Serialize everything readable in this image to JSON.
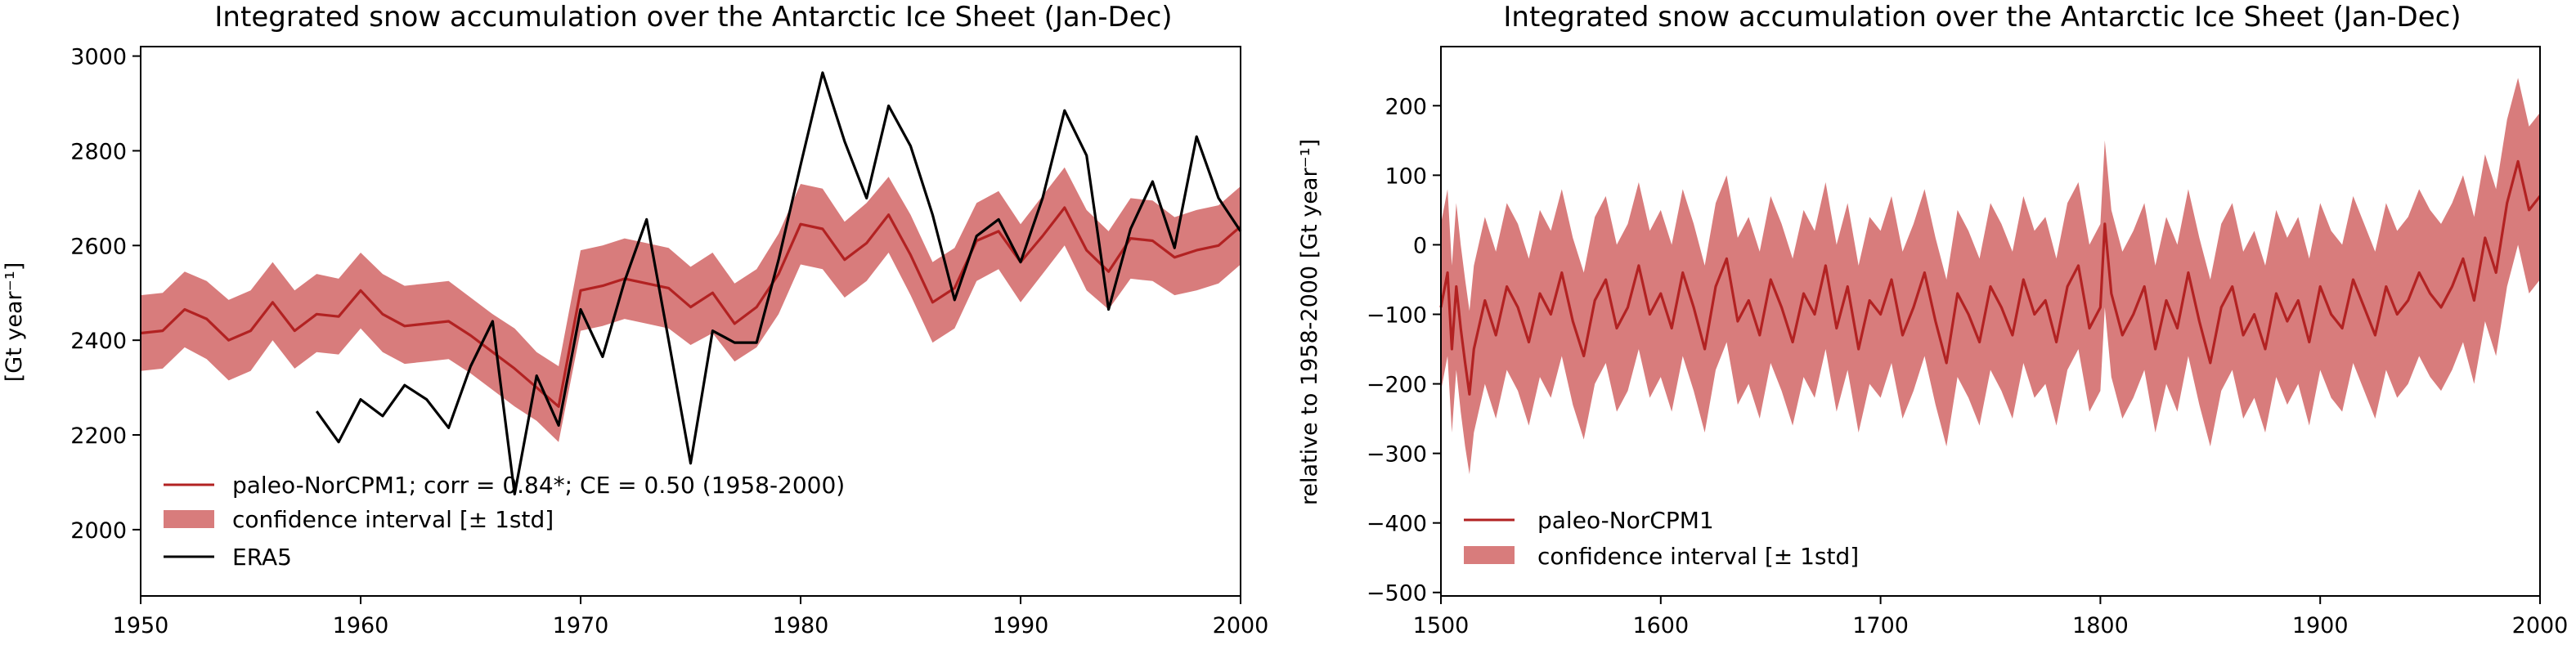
{
  "chart_data": [
    {
      "type": "line",
      "title": "Integrated snow accumulation over the Antarctic Ice Sheet (Jan-Dec)",
      "ylabel": "[Gt year⁻¹]",
      "xlabel": "",
      "xlim": [
        1950,
        2000
      ],
      "ylim": [
        1860,
        3020
      ],
      "x_ticks": [
        1950,
        1960,
        1970,
        1980,
        1990,
        2000
      ],
      "y_ticks": [
        2000,
        2200,
        2400,
        2600,
        2800,
        3000
      ],
      "legend_position": "lower-left",
      "legend": [
        {
          "kind": "line",
          "label": "paleo-NorCPM1; corr = 0.84*; CE = 0.50 (1958-2000)",
          "color": "#b22222"
        },
        {
          "kind": "patch",
          "label": "confidence interval [± 1std]",
          "color": "#d87c7c"
        },
        {
          "kind": "line",
          "label": "ERA5",
          "color": "#000000"
        }
      ],
      "series": [
        {
          "name": "paleo-NorCPM1",
          "color": "#b22222",
          "x": [
            1950,
            1951,
            1952,
            1953,
            1954,
            1955,
            1956,
            1957,
            1958,
            1959,
            1960,
            1961,
            1962,
            1963,
            1964,
            1965,
            1966,
            1967,
            1968,
            1969,
            1970,
            1971,
            1972,
            1973,
            1974,
            1975,
            1976,
            1977,
            1978,
            1979,
            1980,
            1981,
            1982,
            1983,
            1984,
            1985,
            1986,
            1987,
            1988,
            1989,
            1990,
            1991,
            1992,
            1993,
            1994,
            1995,
            1996,
            1997,
            1998,
            1999,
            2000
          ],
          "y": [
            2415,
            2420,
            2465,
            2445,
            2400,
            2420,
            2480,
            2420,
            2455,
            2450,
            2505,
            2455,
            2430,
            2435,
            2440,
            2410,
            2375,
            2340,
            2300,
            2260,
            2505,
            2515,
            2530,
            2520,
            2510,
            2470,
            2500,
            2435,
            2470,
            2540,
            2645,
            2635,
            2570,
            2605,
            2665,
            2580,
            2480,
            2510,
            2610,
            2630,
            2565,
            2620,
            2680,
            2590,
            2545,
            2615,
            2610,
            2575,
            2590,
            2600,
            2640
          ],
          "lower": [
            2335,
            2340,
            2385,
            2360,
            2315,
            2335,
            2400,
            2340,
            2375,
            2370,
            2425,
            2375,
            2350,
            2355,
            2360,
            2330,
            2295,
            2260,
            2230,
            2185,
            2420,
            2430,
            2445,
            2435,
            2425,
            2390,
            2415,
            2355,
            2385,
            2455,
            2560,
            2550,
            2490,
            2525,
            2585,
            2495,
            2395,
            2425,
            2525,
            2550,
            2480,
            2540,
            2600,
            2505,
            2465,
            2530,
            2525,
            2495,
            2505,
            2520,
            2560
          ],
          "upper": [
            2495,
            2500,
            2545,
            2525,
            2485,
            2505,
            2565,
            2505,
            2540,
            2530,
            2585,
            2540,
            2515,
            2520,
            2525,
            2490,
            2455,
            2425,
            2375,
            2345,
            2590,
            2600,
            2615,
            2605,
            2595,
            2555,
            2585,
            2520,
            2550,
            2625,
            2730,
            2720,
            2650,
            2690,
            2745,
            2665,
            2565,
            2595,
            2690,
            2715,
            2645,
            2705,
            2765,
            2675,
            2630,
            2700,
            2695,
            2660,
            2675,
            2685,
            2725
          ]
        },
        {
          "name": "ERA5",
          "color": "#000000",
          "x": [
            1958,
            1959,
            1960,
            1961,
            1962,
            1963,
            1964,
            1965,
            1966,
            1967,
            1968,
            1969,
            1970,
            1971,
            1972,
            1973,
            1974,
            1975,
            1976,
            1977,
            1978,
            1979,
            1980,
            1981,
            1982,
            1983,
            1984,
            1985,
            1986,
            1987,
            1988,
            1989,
            1990,
            1991,
            1992,
            1993,
            1994,
            1995,
            1996,
            1997,
            1998,
            1999,
            2000
          ],
          "y": [
            2250,
            2185,
            2275,
            2240,
            2305,
            2275,
            2215,
            2345,
            2440,
            2075,
            2325,
            2220,
            2465,
            2365,
            2525,
            2655,
            2400,
            2140,
            2420,
            2395,
            2395,
            2570,
            2770,
            2965,
            2820,
            2700,
            2895,
            2810,
            2665,
            2485,
            2620,
            2655,
            2565,
            2700,
            2885,
            2790,
            2465,
            2635,
            2735,
            2595,
            2830,
            2700,
            2630
          ]
        }
      ]
    },
    {
      "type": "line",
      "title": "Integrated snow accumulation over the Antarctic Ice Sheet (Jan-Dec)",
      "ylabel": "relative to 1958-2000 [Gt year⁻¹]",
      "xlabel": "",
      "xlim": [
        1500,
        2000
      ],
      "ylim": [
        -505,
        285
      ],
      "x_ticks": [
        1500,
        1600,
        1700,
        1800,
        1900,
        2000
      ],
      "y_ticks": [
        -500,
        -400,
        -300,
        -200,
        -100,
        0,
        100,
        200
      ],
      "legend_position": "lower-left",
      "legend": [
        {
          "kind": "line",
          "label": "paleo-NorCPM1",
          "color": "#b22222"
        },
        {
          "kind": "patch",
          "label": "confidence interval [± 1std]",
          "color": "#d87c7c"
        }
      ],
      "series": [
        {
          "name": "paleo-NorCPM1",
          "color": "#b22222",
          "x": [
            1500,
            1503,
            1505,
            1507,
            1509,
            1511,
            1513,
            1515,
            1520,
            1525,
            1530,
            1535,
            1540,
            1545,
            1550,
            1555,
            1560,
            1565,
            1570,
            1575,
            1580,
            1585,
            1590,
            1595,
            1600,
            1605,
            1610,
            1615,
            1620,
            1625,
            1630,
            1635,
            1640,
            1645,
            1650,
            1655,
            1660,
            1665,
            1670,
            1675,
            1680,
            1685,
            1690,
            1695,
            1700,
            1705,
            1710,
            1715,
            1720,
            1725,
            1730,
            1735,
            1740,
            1745,
            1750,
            1755,
            1760,
            1765,
            1770,
            1775,
            1780,
            1785,
            1790,
            1795,
            1800,
            1802,
            1805,
            1810,
            1815,
            1820,
            1825,
            1830,
            1835,
            1840,
            1845,
            1850,
            1855,
            1860,
            1865,
            1870,
            1875,
            1880,
            1885,
            1890,
            1895,
            1900,
            1905,
            1910,
            1915,
            1920,
            1925,
            1930,
            1935,
            1940,
            1945,
            1950,
            1955,
            1960,
            1965,
            1970,
            1975,
            1980,
            1985,
            1990,
            1995,
            2000
          ],
          "y": [
            -90,
            -40,
            -150,
            -60,
            -120,
            -170,
            -215,
            -150,
            -80,
            -130,
            -60,
            -90,
            -140,
            -70,
            -100,
            -40,
            -110,
            -160,
            -80,
            -50,
            -120,
            -90,
            -30,
            -100,
            -70,
            -120,
            -40,
            -90,
            -150,
            -60,
            -20,
            -110,
            -80,
            -130,
            -50,
            -90,
            -140,
            -70,
            -100,
            -30,
            -120,
            -60,
            -150,
            -80,
            -100,
            -50,
            -130,
            -90,
            -40,
            -110,
            -170,
            -70,
            -100,
            -140,
            -60,
            -90,
            -130,
            -50,
            -100,
            -80,
            -140,
            -60,
            -30,
            -120,
            -90,
            30,
            -70,
            -130,
            -100,
            -60,
            -150,
            -80,
            -120,
            -40,
            -110,
            -170,
            -90,
            -60,
            -130,
            -100,
            -150,
            -70,
            -110,
            -80,
            -140,
            -60,
            -100,
            -120,
            -50,
            -90,
            -130,
            -60,
            -100,
            -80,
            -40,
            -70,
            -90,
            -60,
            -20,
            -80,
            10,
            -40,
            60,
            120,
            50,
            70
          ],
          "lower": [
            -210,
            -160,
            -270,
            -180,
            -240,
            -290,
            -330,
            -270,
            -200,
            -250,
            -180,
            -210,
            -260,
            -190,
            -220,
            -160,
            -230,
            -280,
            -200,
            -170,
            -240,
            -210,
            -150,
            -220,
            -190,
            -240,
            -160,
            -210,
            -270,
            -180,
            -140,
            -230,
            -200,
            -250,
            -170,
            -210,
            -260,
            -190,
            -220,
            -150,
            -240,
            -180,
            -270,
            -200,
            -220,
            -170,
            -250,
            -210,
            -160,
            -230,
            -290,
            -190,
            -220,
            -260,
            -180,
            -210,
            -250,
            -170,
            -220,
            -200,
            -260,
            -180,
            -150,
            -240,
            -210,
            -90,
            -190,
            -250,
            -220,
            -180,
            -270,
            -200,
            -240,
            -160,
            -230,
            -290,
            -210,
            -180,
            -250,
            -220,
            -270,
            -190,
            -230,
            -200,
            -260,
            -180,
            -220,
            -240,
            -170,
            -210,
            -250,
            -180,
            -220,
            -200,
            -160,
            -190,
            -210,
            -180,
            -140,
            -200,
            -110,
            -160,
            -60,
            0,
            -70,
            -50
          ],
          "upper": [
            30,
            80,
            -30,
            60,
            0,
            -50,
            -95,
            -30,
            40,
            -10,
            60,
            30,
            -20,
            50,
            20,
            80,
            10,
            -40,
            40,
            70,
            0,
            30,
            90,
            20,
            50,
            0,
            80,
            30,
            -30,
            60,
            100,
            10,
            40,
            -10,
            70,
            30,
            -20,
            50,
            20,
            90,
            0,
            60,
            -30,
            40,
            20,
            70,
            -10,
            30,
            80,
            10,
            -50,
            50,
            20,
            -20,
            60,
            30,
            -10,
            70,
            20,
            40,
            -20,
            60,
            90,
            0,
            30,
            150,
            50,
            -10,
            20,
            60,
            -30,
            40,
            0,
            80,
            10,
            -50,
            30,
            60,
            -10,
            20,
            -30,
            50,
            10,
            40,
            -20,
            60,
            20,
            0,
            70,
            30,
            -10,
            60,
            20,
            40,
            80,
            50,
            30,
            60,
            100,
            40,
            130,
            80,
            180,
            240,
            170,
            190
          ]
        }
      ]
    }
  ]
}
